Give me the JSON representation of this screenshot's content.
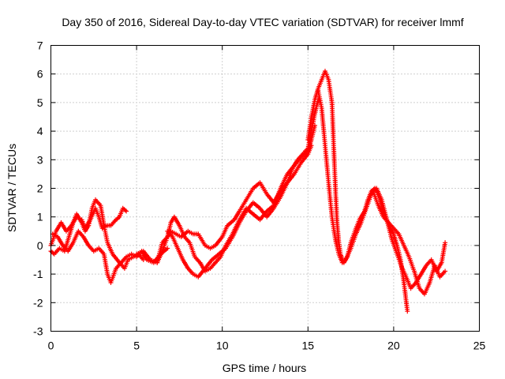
{
  "chart_data": {
    "type": "scatter",
    "title": "Day 350 of 2016, Sidereal Day-to-day VTEC variation (SDTVAR) for receiver lmmf",
    "xlabel": "GPS time / hours",
    "ylabel": "SDTVAR / TECUs",
    "xlim": [
      0,
      25
    ],
    "ylim": [
      -3,
      7
    ],
    "xticks": [
      0,
      5,
      10,
      15,
      20,
      25
    ],
    "yticks": [
      -3,
      -2,
      -1,
      0,
      1,
      2,
      3,
      4,
      5,
      6,
      7
    ],
    "grid": true,
    "marker": "+",
    "series": [
      {
        "name": "SDTVAR",
        "color": "#ff0000",
        "segments": [
          {
            "x": [
              0.0,
              0.3,
              0.6,
              0.9,
              1.2,
              1.5,
              1.8,
              2.0,
              2.3,
              2.6,
              2.8,
              3.0,
              3.2,
              3.5,
              3.8,
              4.0,
              4.2,
              4.4
            ],
            "y": [
              0.0,
              0.5,
              0.8,
              0.5,
              0.7,
              1.0,
              0.9,
              0.6,
              0.9,
              1.3,
              1.0,
              0.6,
              0.7,
              0.7,
              0.9,
              1.0,
              1.3,
              1.2
            ]
          },
          {
            "x": [
              0.0,
              0.2,
              0.5,
              0.8,
              1.0,
              1.3,
              1.5,
              1.8,
              2.0,
              2.2,
              2.4,
              2.6,
              2.9,
              3.1,
              3.3,
              3.6,
              4.0,
              4.3,
              4.5,
              4.8,
              5.1,
              5.4
            ],
            "y": [
              -0.2,
              -0.3,
              -0.1,
              -0.2,
              0.2,
              0.8,
              1.1,
              0.8,
              0.5,
              0.7,
              1.3,
              1.6,
              1.4,
              0.7,
              0.1,
              -0.3,
              -0.6,
              -0.8,
              -0.5,
              -0.4,
              -0.3,
              -0.5
            ]
          },
          {
            "x": [
              0.1,
              0.4,
              0.7,
              1.0,
              1.3,
              1.6,
              1.9,
              2.2,
              2.5,
              2.8,
              3.1,
              3.3,
              3.5,
              3.8,
              4.1,
              4.4,
              4.7,
              5.0,
              5.3,
              5.6,
              6.0,
              6.4,
              6.8
            ],
            "y": [
              0.4,
              0.3,
              0.0,
              -0.2,
              0.1,
              0.5,
              0.3,
              0.0,
              -0.2,
              -0.1,
              -0.3,
              -1.0,
              -1.3,
              -0.8,
              -0.6,
              -0.4,
              -0.3,
              -0.4,
              -0.2,
              -0.5,
              -0.6,
              -0.3,
              -0.1
            ]
          },
          {
            "x": [
              5.0,
              5.4,
              5.8,
              6.2,
              6.5,
              6.8,
              7.0,
              7.3,
              7.6,
              8.0,
              8.3,
              8.6,
              9.0,
              9.3,
              9.6,
              10.0,
              10.3,
              10.7,
              11.0,
              11.4,
              11.8,
              12.2,
              12.6,
              13.0,
              13.4,
              13.8,
              14.2,
              14.6,
              15.0,
              15.2
            ],
            "y": [
              -0.3,
              -0.2,
              -0.5,
              -0.6,
              0.1,
              0.3,
              0.5,
              0.4,
              0.3,
              0.5,
              0.4,
              0.4,
              0.0,
              -0.1,
              0.0,
              0.3,
              0.7,
              0.9,
              1.2,
              1.6,
              2.0,
              2.2,
              1.8,
              1.5,
              1.9,
              2.2,
              2.5,
              2.9,
              3.2,
              3.5
            ]
          },
          {
            "x": [
              6.2,
              6.5,
              6.8,
              7.0,
              7.2,
              7.5,
              7.8,
              8.1,
              8.4,
              8.7,
              9.0,
              9.3,
              9.6,
              9.9,
              10.2,
              10.6,
              11.0,
              11.4,
              11.8,
              12.2,
              12.6,
              13.0,
              13.4,
              13.8,
              14.2,
              14.6,
              15.0,
              15.2,
              15.4
            ],
            "y": [
              -0.6,
              -0.2,
              0.3,
              0.8,
              1.0,
              0.7,
              0.3,
              0.1,
              -0.4,
              -0.6,
              -0.9,
              -0.8,
              -0.6,
              -0.4,
              0.0,
              0.4,
              0.9,
              1.3,
              1.1,
              0.9,
              1.2,
              1.4,
              2.0,
              2.5,
              2.8,
              3.1,
              3.3,
              3.7,
              4.2
            ]
          },
          {
            "x": [
              6.8,
              7.1,
              7.4,
              7.7,
              8.0,
              8.3,
              8.6,
              9.0,
              9.4,
              9.8,
              10.2,
              10.6,
              11.0,
              11.4,
              11.8,
              12.2,
              12.6,
              13.0,
              13.4,
              13.8,
              14.1,
              14.4,
              14.7,
              15.0,
              15.2,
              15.4,
              15.6
            ],
            "y": [
              0.5,
              0.3,
              -0.1,
              -0.5,
              -0.8,
              -1.0,
              -1.1,
              -0.8,
              -0.5,
              -0.3,
              -0.1,
              0.3,
              0.8,
              1.2,
              1.5,
              1.3,
              1.0,
              1.3,
              1.7,
              2.2,
              2.7,
              3.0,
              3.2,
              3.4,
              4.0,
              4.6,
              5.1
            ]
          },
          {
            "x": [
              15.0,
              15.2,
              15.4,
              15.6,
              15.8,
              16.0,
              16.2,
              16.4,
              16.5,
              16.6,
              16.7,
              16.8,
              16.9,
              17.0,
              17.1,
              17.3,
              17.5,
              17.8,
              18.0,
              18.3,
              18.5,
              18.7,
              18.9,
              19.0,
              19.2,
              19.4,
              19.6,
              19.8,
              20.0,
              20.2,
              20.4,
              20.6,
              20.8
            ],
            "y": [
              3.7,
              4.5,
              5.1,
              5.5,
              5.8,
              6.1,
              5.8,
              5.0,
              3.5,
              2.0,
              0.8,
              0.1,
              -0.3,
              -0.5,
              -0.6,
              -0.4,
              0.1,
              0.6,
              0.9,
              1.2,
              1.6,
              1.9,
              2.0,
              1.9,
              1.6,
              1.2,
              0.9,
              0.6,
              0.4,
              0.0,
              -0.5,
              -1.3,
              -2.3
            ]
          },
          {
            "x": [
              15.6,
              15.8,
              16.0,
              16.2,
              16.4,
              16.6,
              16.8,
              17.0,
              17.2,
              17.5,
              17.8,
              18.1,
              18.4,
              18.7,
              19.0,
              19.3,
              19.6,
              19.9,
              20.2,
              20.5,
              20.8,
              21.0,
              21.3,
              21.6,
              21.9,
              22.2,
              22.5,
              22.8,
              23.0
            ],
            "y": [
              5.4,
              4.8,
              3.5,
              2.2,
              1.0,
              0.2,
              -0.3,
              -0.6,
              -0.5,
              -0.1,
              0.4,
              0.8,
              1.3,
              1.8,
              2.0,
              1.6,
              0.9,
              0.2,
              -0.3,
              -0.8,
              -1.2,
              -1.5,
              -1.3,
              -1.0,
              -0.7,
              -0.5,
              -0.9,
              -0.6,
              0.1
            ]
          },
          {
            "x": [
              18.8,
              19.1,
              19.4,
              19.7,
              20.0,
              20.3,
              20.6,
              20.9,
              21.2,
              21.5,
              21.8,
              22.1,
              22.4,
              22.7,
              23.0
            ],
            "y": [
              1.9,
              1.4,
              1.0,
              0.8,
              0.6,
              0.4,
              0.0,
              -0.4,
              -0.9,
              -1.5,
              -1.7,
              -1.3,
              -0.7,
              -1.1,
              -0.9
            ]
          }
        ]
      }
    ]
  }
}
